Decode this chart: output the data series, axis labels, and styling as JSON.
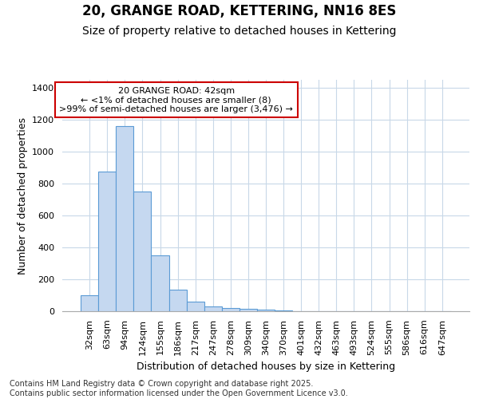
{
  "title1": "20, GRANGE ROAD, KETTERING, NN16 8ES",
  "title2": "Size of property relative to detached houses in Kettering",
  "xlabel": "Distribution of detached houses by size in Kettering",
  "ylabel": "Number of detached properties",
  "categories": [
    "32sqm",
    "63sqm",
    "94sqm",
    "124sqm",
    "155sqm",
    "186sqm",
    "217sqm",
    "247sqm",
    "278sqm",
    "309sqm",
    "340sqm",
    "370sqm",
    "401sqm",
    "432sqm",
    "463sqm",
    "493sqm",
    "524sqm",
    "555sqm",
    "586sqm",
    "616sqm",
    "647sqm"
  ],
  "values": [
    100,
    875,
    1160,
    750,
    350,
    135,
    60,
    30,
    20,
    15,
    10,
    5,
    2,
    0,
    0,
    0,
    0,
    0,
    0,
    0,
    0
  ],
  "bar_color": "#c5d8f0",
  "bar_edge_color": "#5b9bd5",
  "annotation_text": "20 GRANGE ROAD: 42sqm\n← <1% of detached houses are smaller (8)\n>99% of semi-detached houses are larger (3,476) →",
  "annotation_box_color": "white",
  "annotation_box_edge": "#cc0000",
  "ylim": [
    0,
    1450
  ],
  "yticks": [
    0,
    200,
    400,
    600,
    800,
    1000,
    1200,
    1400
  ],
  "background_color": "#ffffff",
  "grid_color": "#c8d8e8",
  "footer_text": "Contains HM Land Registry data © Crown copyright and database right 2025.\nContains public sector information licensed under the Open Government Licence v3.0.",
  "title1_fontsize": 12,
  "title2_fontsize": 10,
  "ylabel_fontsize": 9,
  "xlabel_fontsize": 9,
  "annotation_fontsize": 8,
  "tick_fontsize": 8,
  "footer_fontsize": 7
}
